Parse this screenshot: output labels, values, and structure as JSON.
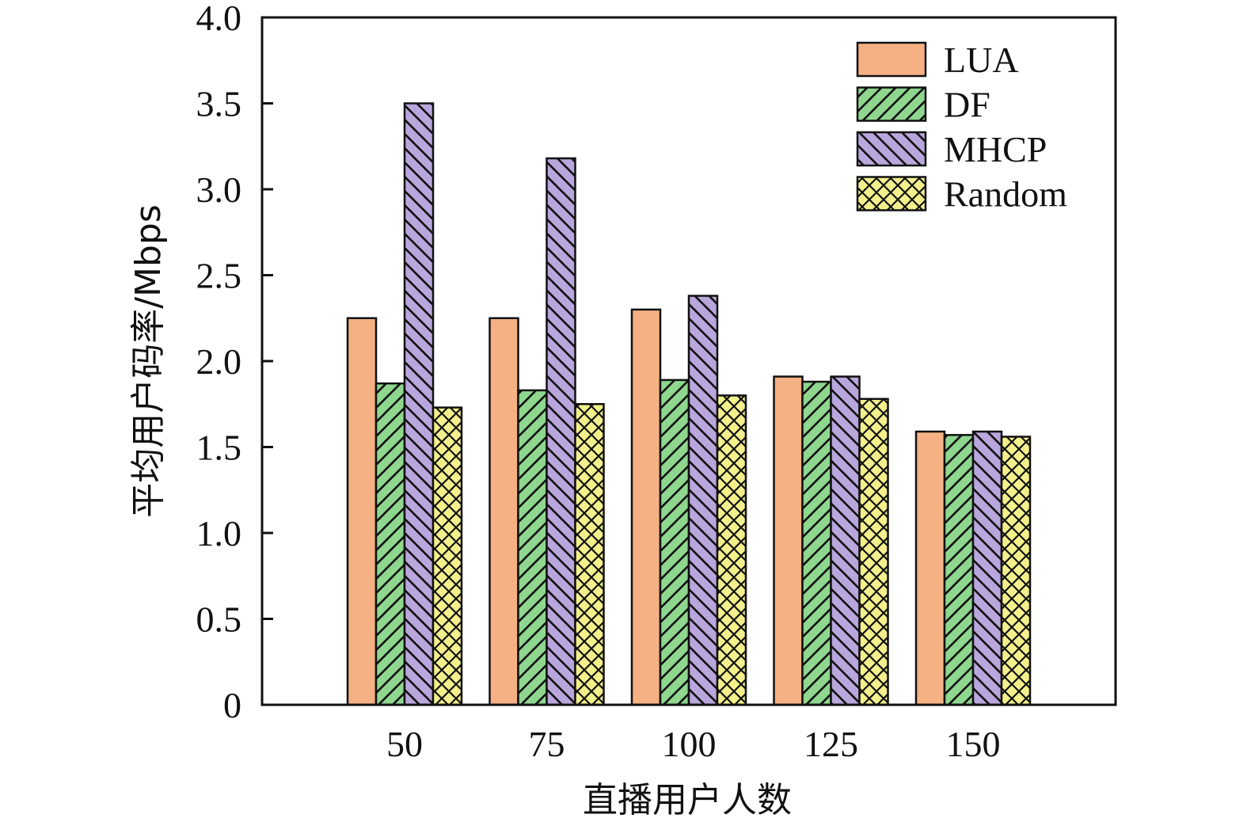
{
  "chart_data": {
    "type": "bar",
    "categories": [
      "50",
      "75",
      "100",
      "125",
      "150"
    ],
    "series": [
      {
        "name": "LUA",
        "values": [
          2.25,
          2.25,
          2.3,
          1.91,
          1.59
        ],
        "color": "#f5b184",
        "pattern": "solid"
      },
      {
        "name": "DF",
        "values": [
          1.87,
          1.83,
          1.89,
          1.88,
          1.57
        ],
        "color": "#8fd68f",
        "pattern": "forward-hatch"
      },
      {
        "name": "MHCP",
        "values": [
          3.5,
          3.18,
          2.38,
          1.91,
          1.59
        ],
        "color": "#b9a6dc",
        "pattern": "back-hatch"
      },
      {
        "name": "Random",
        "values": [
          1.73,
          1.75,
          1.8,
          1.78,
          1.56
        ],
        "color": "#f3f08c",
        "pattern": "cross-hatch"
      }
    ],
    "xlabel": "直播用户人数",
    "ylabel": "平均用户码率/Mbps",
    "ylim": [
      0,
      4.0
    ],
    "yticks": [
      "0",
      "0.5",
      "1.0",
      "1.5",
      "2.0",
      "2.5",
      "3.0",
      "3.5",
      "4.0"
    ],
    "grid": false,
    "legend_position": "top-right"
  }
}
